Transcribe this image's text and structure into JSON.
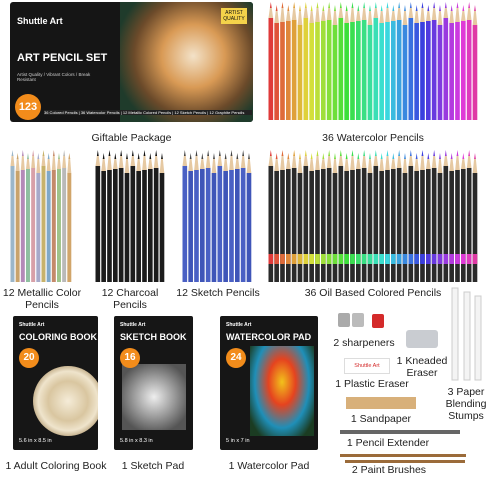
{
  "box": {
    "brand": "Shuttle Art",
    "title": "ART PENCIL SET",
    "badge": "ARTIST QUALITY",
    "count": "123",
    "features": "Artist Quality / Vibrant Colors / Break Resistant",
    "contents": "36 Colored Pencils | 36 Watercolor Pencils | 12 Metallic Colored Pencils | 12 Sketch Pencils | 12 Graphite Pencils",
    "caption": "Giftable Package"
  },
  "pencil_sets": [
    {
      "label": "36 Watercolor Pencils"
    },
    {
      "label": "12 Metallic Color Pencils"
    },
    {
      "label": "12 Charcoal Pencils"
    },
    {
      "label": "12 Sketch Pencils"
    },
    {
      "label": "36 Oil Based Colored Pencils"
    }
  ],
  "books": [
    {
      "brand": "Shuttle Art",
      "title": "COLORING BOOK",
      "count": "20",
      "size": "5.6 in x 8.5 in",
      "caption": "1 Adult Coloring Book"
    },
    {
      "brand": "Shuttle Art",
      "title": "SKETCH BOOK",
      "count": "16",
      "size": "5.8 in x 8.3 in",
      "caption": "1 Sketch Pad"
    },
    {
      "brand": "Shuttle Art",
      "title": "WATERCOLOR PAD",
      "count": "24",
      "size": "5 in x 7 in",
      "caption": "1 Watercolor Pad"
    }
  ],
  "accessories": {
    "sharpeners": "2 sharpeners",
    "kneaded_eraser": "1 Kneaded Eraser",
    "plastic_eraser_brand": "Shuttle Art",
    "plastic_eraser": "1 Plastic Eraser",
    "stumps": "3 Paper Blending Stumps",
    "sandpaper": "1 Sandpaper",
    "extender": "1 Pencil Extender",
    "brushes": "2 Paint Brushes"
  }
}
